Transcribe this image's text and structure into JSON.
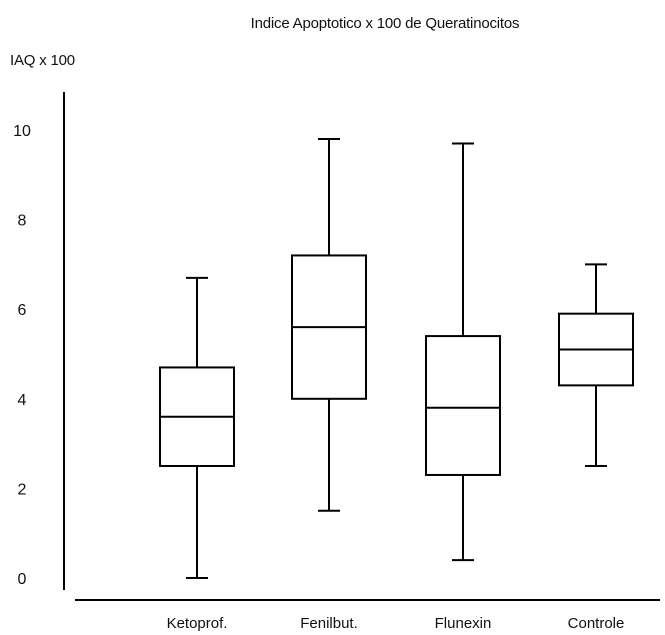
{
  "chart_data": {
    "type": "boxplot",
    "title": "Indice Apoptotico x 100 de Queratinocitos",
    "ylabel": "IAQ x 100",
    "xlabel": "",
    "ylim": [
      0,
      10.5
    ],
    "yticks": [
      0,
      2,
      4,
      6,
      8,
      10
    ],
    "grid": false,
    "legend": "none",
    "line_color": "#000000",
    "categories": [
      "Ketoprof.",
      "Fenilbut.",
      "Flunexin",
      "Controle"
    ],
    "boxes": [
      {
        "label": "Ketoprof.",
        "min": 0.0,
        "q1": 2.5,
        "median": 3.6,
        "q3": 4.7,
        "max": 6.7
      },
      {
        "label": "Fenilbut.",
        "min": 1.5,
        "q1": 4.0,
        "median": 5.6,
        "q3": 7.2,
        "max": 9.8
      },
      {
        "label": "Flunexin",
        "min": 0.4,
        "q1": 2.3,
        "median": 3.8,
        "q3": 5.4,
        "max": 9.7
      },
      {
        "label": "Controle",
        "min": 2.5,
        "q1": 4.3,
        "median": 5.1,
        "q3": 5.9,
        "max": 7.0
      }
    ]
  }
}
